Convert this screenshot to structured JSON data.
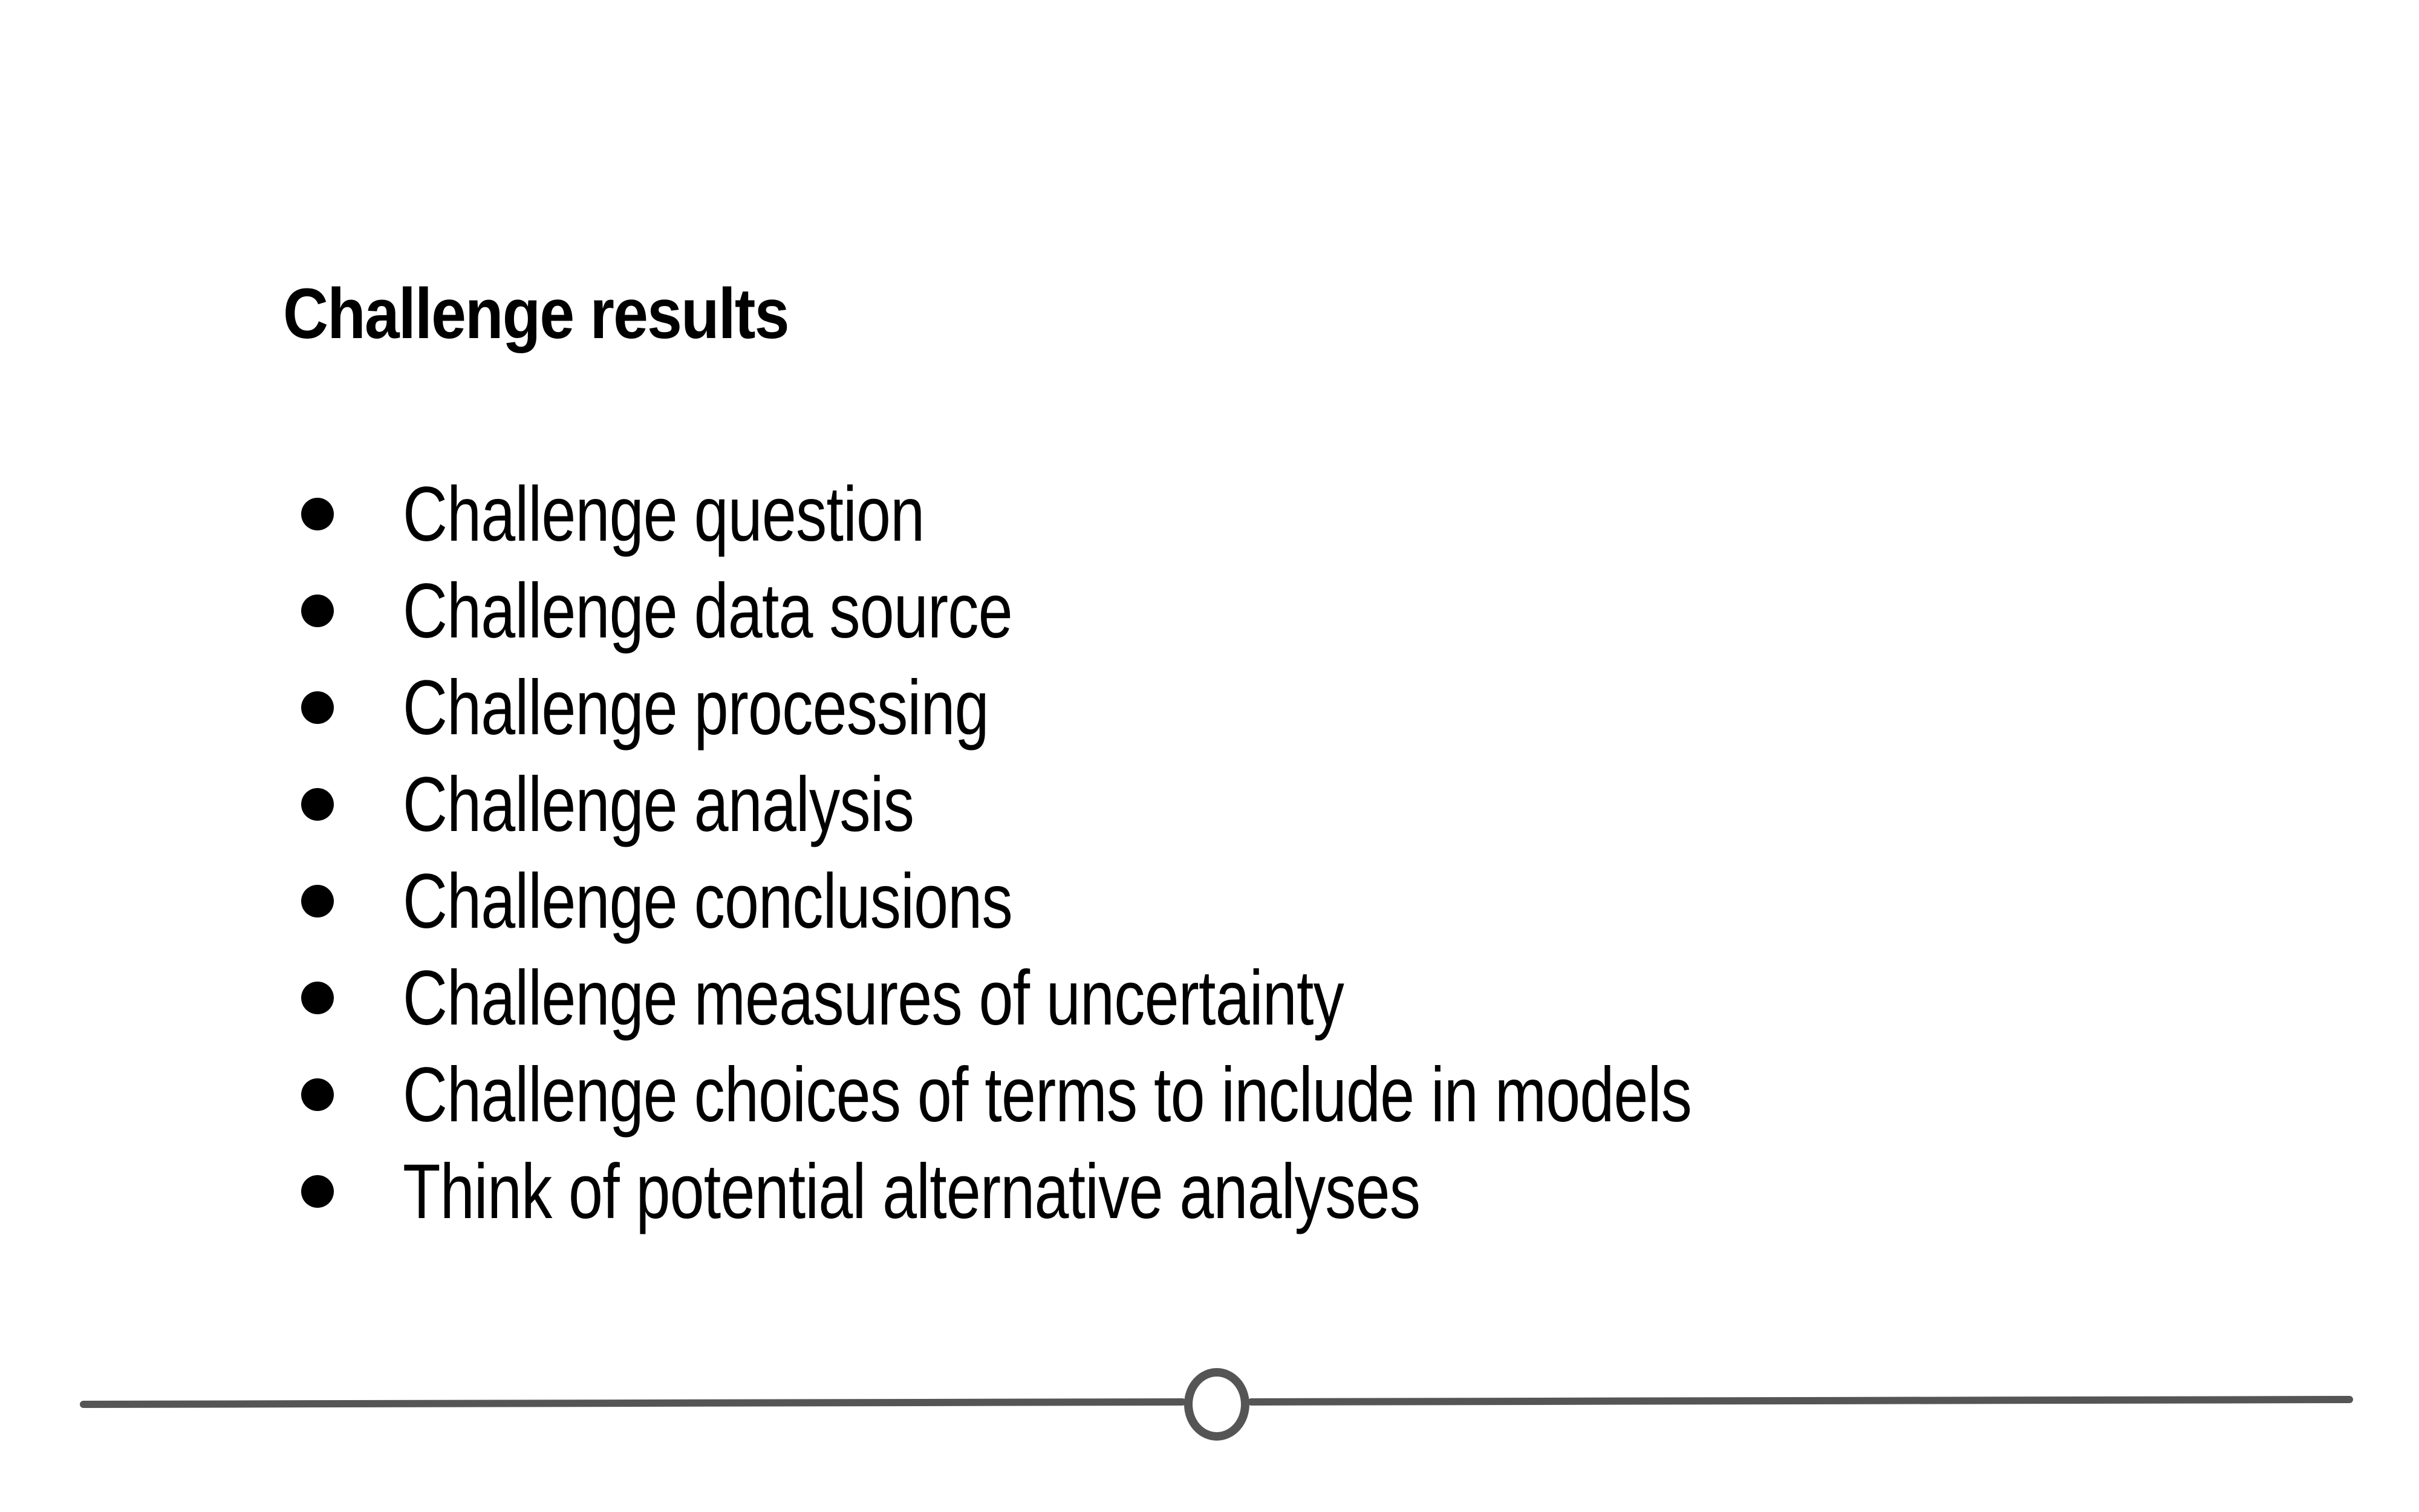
{
  "slide": {
    "title": "Challenge results",
    "bullets": [
      "Challenge question",
      "Challenge data source",
      "Challenge processing",
      "Challenge analysis",
      "Challenge conclusions",
      "Challenge measures of uncertainty",
      "Challenge choices of terms to include in models",
      "Think of potential alternative analyses"
    ]
  },
  "colors": {
    "text": "#000000",
    "background": "#ffffff",
    "timeline": "#555555"
  },
  "icons": {
    "bullet": "bullet-dot-icon",
    "timeline_marker": "circle-marker-icon"
  }
}
